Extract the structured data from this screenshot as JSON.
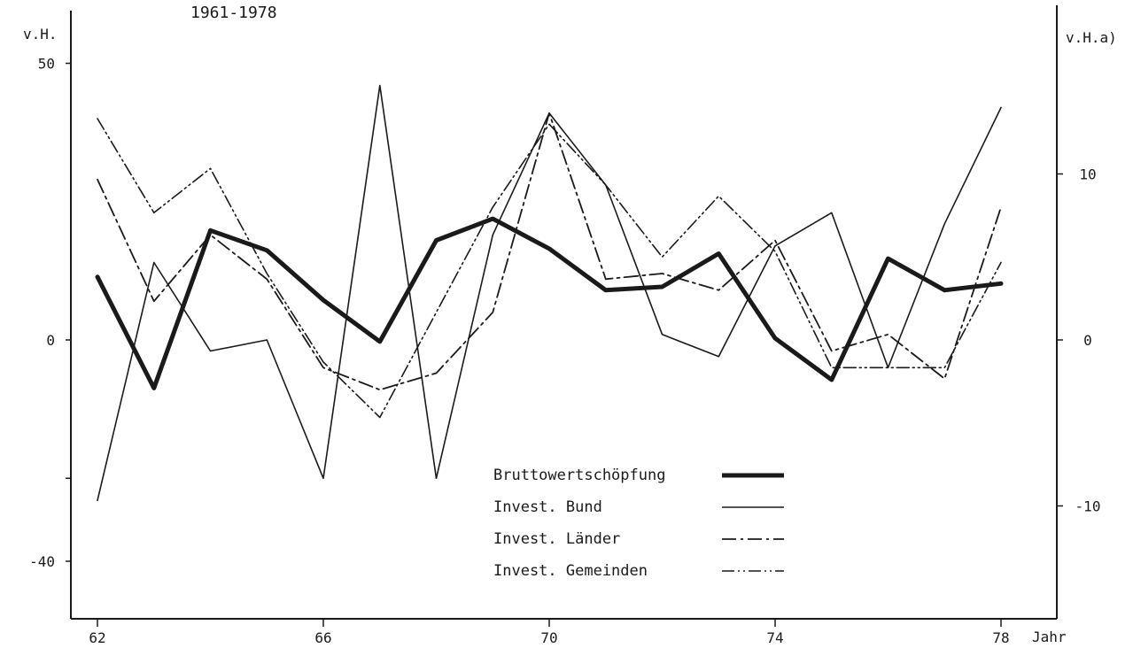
{
  "chart_data": {
    "type": "line",
    "title": "1961-1978",
    "xlabel": "Jahr",
    "ylabel_left": "v.H.",
    "ylabel_right": "v.H.a)",
    "x": [
      62,
      63,
      64,
      65,
      66,
      67,
      68,
      69,
      70,
      71,
      72,
      73,
      74,
      75,
      76,
      77,
      78
    ],
    "x_ticks": [
      "62",
      "66",
      "70",
      "74",
      "78"
    ],
    "y_left_ticks": [
      "50",
      "0",
      "-40"
    ],
    "y_right_ticks": [
      "10",
      "0",
      "-10"
    ],
    "ylim_left": [
      -50,
      50
    ],
    "ylim_right": [
      -16.5,
      20
    ],
    "grid": false,
    "legend_position": "bottom-center",
    "series": [
      {
        "name": "Bruttowertschöpfung",
        "axis": "right",
        "style": "thick",
        "values": [
          3.8,
          -2.9,
          6.6,
          5.4,
          2.4,
          -0.1,
          6.0,
          7.3,
          5.5,
          3.0,
          3.2,
          5.2,
          0.1,
          -2.4,
          4.9,
          3.0,
          3.4
        ]
      },
      {
        "name": "Invest. Bund",
        "axis": "left",
        "style": "solid",
        "values": [
          -29,
          14,
          -2,
          0,
          -25,
          46,
          -25,
          19,
          41,
          28,
          1,
          -3,
          17,
          23,
          -5,
          21,
          42
        ]
      },
      {
        "name": "Invest. Länder",
        "axis": "left",
        "style": "dash-dot",
        "values": [
          29,
          7,
          19,
          11,
          -5,
          -9,
          -6,
          5,
          41,
          11,
          12,
          9,
          18,
          -2,
          1,
          -7,
          24
        ]
      },
      {
        "name": "Invest. Gemeinden",
        "axis": "left",
        "style": "dash-dot-dot",
        "values": [
          40,
          23,
          31,
          12,
          -4,
          -14,
          5,
          24,
          39,
          28,
          15,
          26,
          16,
          -5,
          -5,
          -5,
          14
        ]
      }
    ]
  }
}
